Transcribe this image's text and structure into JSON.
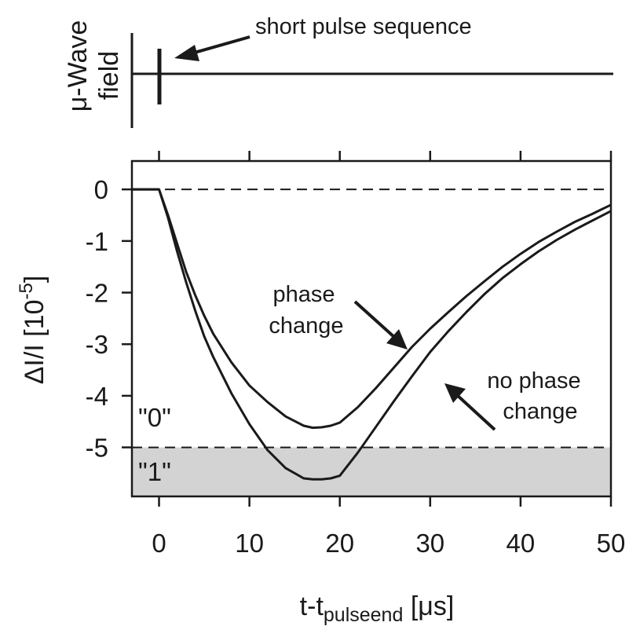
{
  "top_panel": {
    "ylabel_line1": "μ-Wave",
    "ylabel_line2": "field",
    "annotation": "short pulse sequence"
  },
  "chart_data": {
    "type": "line",
    "xlabel_main": "t-t",
    "xlabel_sub": "pulseend",
    "xlabel_unit": " [μs]",
    "ylabel_main": "ΔI/I  [10",
    "ylabel_exp": "-5",
    "ylabel_close": "]",
    "xlim": [
      -3,
      50
    ],
    "ylim": [
      -5.95,
      0.55
    ],
    "x_ticks": [
      0,
      10,
      20,
      30,
      40,
      50
    ],
    "y_ticks": [
      0,
      -1,
      -2,
      -3,
      -4,
      -5
    ],
    "reference_lines": [
      0,
      -5
    ],
    "threshold_region": {
      "from": -5.95,
      "to": -5,
      "color": "#d3d3d3"
    },
    "region_labels": [
      {
        "text": "\"0\""
      },
      {
        "text": "\"1\""
      }
    ],
    "series": [
      {
        "annotation": "phase\nchange",
        "x": [
          -3,
          0,
          1,
          2,
          3,
          4,
          5,
          6,
          8,
          10,
          12,
          14,
          16,
          17,
          18,
          19,
          20,
          22,
          24,
          26,
          28,
          30,
          32,
          34,
          36,
          38,
          40,
          42,
          44,
          46,
          48,
          50
        ],
        "y": [
          0,
          0,
          -0.5,
          -1.05,
          -1.6,
          -2.05,
          -2.45,
          -2.8,
          -3.35,
          -3.8,
          -4.12,
          -4.4,
          -4.58,
          -4.62,
          -4.61,
          -4.58,
          -4.52,
          -4.22,
          -3.85,
          -3.45,
          -3.05,
          -2.7,
          -2.38,
          -2.07,
          -1.78,
          -1.5,
          -1.25,
          -1.02,
          -0.82,
          -0.63,
          -0.47,
          -0.3
        ]
      },
      {
        "annotation": "no phase\nchange",
        "x": [
          -3,
          0,
          1,
          2,
          3,
          4,
          5,
          6,
          8,
          10,
          12,
          14,
          16,
          17,
          18,
          19,
          20,
          22,
          24,
          26,
          28,
          30,
          32,
          34,
          36,
          38,
          40,
          42,
          44,
          46,
          48,
          50
        ],
        "y": [
          0,
          0,
          -0.55,
          -1.2,
          -1.8,
          -2.35,
          -2.85,
          -3.25,
          -3.95,
          -4.55,
          -5.05,
          -5.4,
          -5.6,
          -5.62,
          -5.62,
          -5.6,
          -5.55,
          -5.1,
          -4.6,
          -4.1,
          -3.62,
          -3.15,
          -2.75,
          -2.38,
          -2.03,
          -1.72,
          -1.45,
          -1.2,
          -0.98,
          -0.78,
          -0.6,
          -0.42
        ]
      }
    ]
  },
  "colors": {
    "line": "#1a1a1a",
    "frame": "#1a1a1a",
    "shade": "#d3d3d3"
  }
}
